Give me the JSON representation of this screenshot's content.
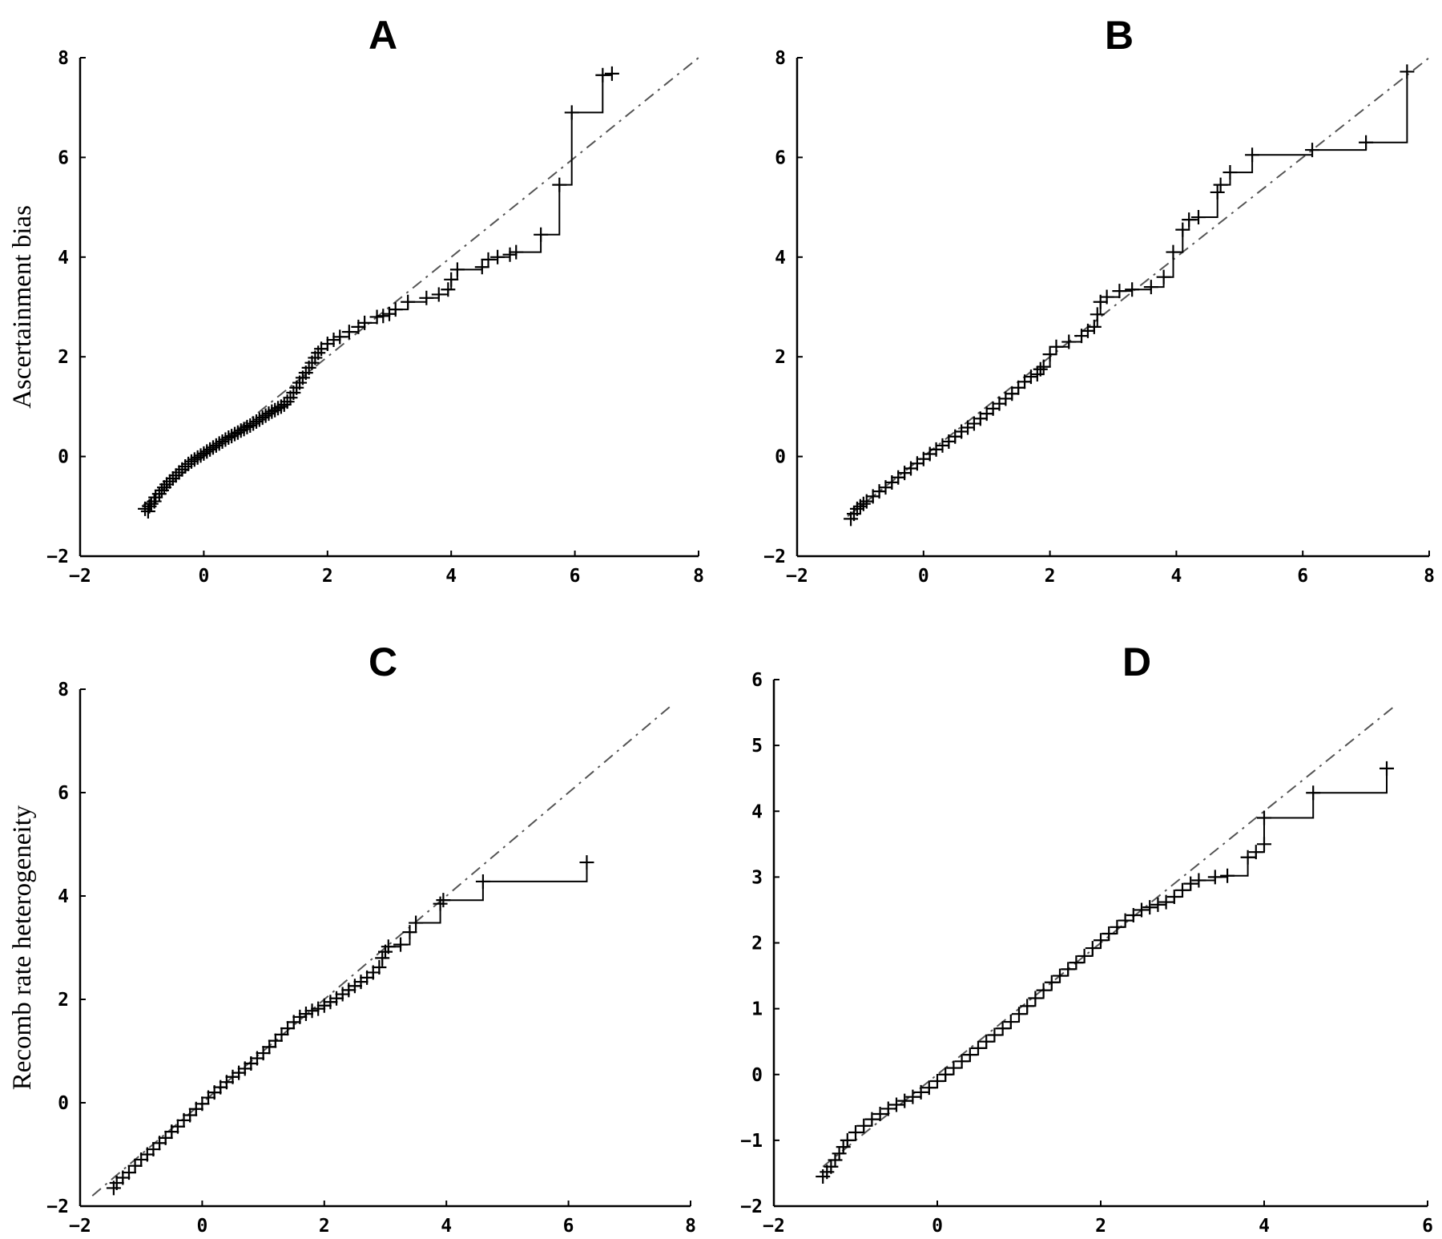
{
  "chart_data": [
    {
      "type": "scatter",
      "panel": "A",
      "ylabel": "Ascertainment bias",
      "xlim": [
        -2,
        8
      ],
      "ylim": [
        -2,
        8
      ],
      "xticks": [
        -2,
        0,
        2,
        4,
        6,
        8
      ],
      "yticks": [
        -2,
        0,
        2,
        4,
        6,
        8
      ],
      "grid": false,
      "reference_line": [
        [
          -1.0,
          -1.0
        ],
        [
          8.0,
          8.0
        ]
      ],
      "points": [
        [
          -0.95,
          -1.05
        ],
        [
          -0.9,
          -1.1
        ],
        [
          -0.88,
          -1.0
        ],
        [
          -0.85,
          -0.95
        ],
        [
          -0.8,
          -0.9
        ],
        [
          -0.78,
          -0.82
        ],
        [
          -0.72,
          -0.75
        ],
        [
          -0.68,
          -0.68
        ],
        [
          -0.64,
          -0.62
        ],
        [
          -0.6,
          -0.56
        ],
        [
          -0.55,
          -0.5
        ],
        [
          -0.5,
          -0.44
        ],
        [
          -0.45,
          -0.38
        ],
        [
          -0.4,
          -0.32
        ],
        [
          -0.35,
          -0.26
        ],
        [
          -0.3,
          -0.2
        ],
        [
          -0.25,
          -0.15
        ],
        [
          -0.2,
          -0.1
        ],
        [
          -0.15,
          -0.06
        ],
        [
          -0.1,
          -0.02
        ],
        [
          -0.05,
          0.02
        ],
        [
          0.0,
          0.06
        ],
        [
          0.05,
          0.1
        ],
        [
          0.1,
          0.14
        ],
        [
          0.15,
          0.18
        ],
        [
          0.2,
          0.22
        ],
        [
          0.25,
          0.26
        ],
        [
          0.3,
          0.3
        ],
        [
          0.35,
          0.34
        ],
        [
          0.4,
          0.38
        ],
        [
          0.45,
          0.41
        ],
        [
          0.5,
          0.45
        ],
        [
          0.55,
          0.48
        ],
        [
          0.6,
          0.52
        ],
        [
          0.65,
          0.55
        ],
        [
          0.7,
          0.59
        ],
        [
          0.75,
          0.62
        ],
        [
          0.8,
          0.66
        ],
        [
          0.85,
          0.7
        ],
        [
          0.9,
          0.74
        ],
        [
          0.95,
          0.78
        ],
        [
          1.0,
          0.82
        ],
        [
          1.05,
          0.86
        ],
        [
          1.1,
          0.9
        ],
        [
          1.15,
          0.93
        ],
        [
          1.2,
          0.97
        ],
        [
          1.25,
          1.0
        ],
        [
          1.3,
          1.04
        ],
        [
          1.35,
          1.1
        ],
        [
          1.4,
          1.18
        ],
        [
          1.45,
          1.28
        ],
        [
          1.5,
          1.38
        ],
        [
          1.55,
          1.48
        ],
        [
          1.6,
          1.58
        ],
        [
          1.65,
          1.68
        ],
        [
          1.7,
          1.78
        ],
        [
          1.75,
          1.88
        ],
        [
          1.8,
          1.98
        ],
        [
          1.85,
          2.08
        ],
        [
          1.9,
          2.16
        ],
        [
          2.0,
          2.26
        ],
        [
          2.1,
          2.34
        ],
        [
          2.2,
          2.4
        ],
        [
          2.35,
          2.5
        ],
        [
          2.5,
          2.6
        ],
        [
          2.6,
          2.68
        ],
        [
          2.8,
          2.8
        ],
        [
          2.9,
          2.82
        ],
        [
          3.0,
          2.86
        ],
        [
          3.1,
          2.95
        ],
        [
          3.3,
          3.1
        ],
        [
          3.6,
          3.18
        ],
        [
          3.8,
          3.25
        ],
        [
          3.95,
          3.35
        ],
        [
          4.0,
          3.55
        ],
        [
          4.1,
          3.75
        ],
        [
          4.5,
          3.8
        ],
        [
          4.6,
          3.95
        ],
        [
          4.75,
          4.0
        ],
        [
          4.95,
          4.05
        ],
        [
          5.05,
          4.1
        ],
        [
          5.45,
          4.45
        ],
        [
          5.75,
          5.45
        ],
        [
          5.95,
          6.9
        ],
        [
          6.45,
          7.65
        ],
        [
          6.6,
          7.68
        ]
      ]
    },
    {
      "type": "scatter",
      "panel": "B",
      "ylabel": "",
      "xlim": [
        -2,
        8
      ],
      "ylim": [
        -2,
        8
      ],
      "xticks": [
        -2,
        0,
        2,
        4,
        6,
        8
      ],
      "yticks": [
        -2,
        0,
        2,
        4,
        6,
        8
      ],
      "grid": false,
      "reference_line": [
        [
          -1.2,
          -1.2
        ],
        [
          8.0,
          8.0
        ]
      ],
      "points": [
        [
          -1.15,
          -1.25
        ],
        [
          -1.1,
          -1.15
        ],
        [
          -1.05,
          -1.05
        ],
        [
          -1.0,
          -1.0
        ],
        [
          -0.95,
          -0.95
        ],
        [
          -0.9,
          -0.9
        ],
        [
          -0.8,
          -0.8
        ],
        [
          -0.7,
          -0.7
        ],
        [
          -0.6,
          -0.62
        ],
        [
          -0.5,
          -0.52
        ],
        [
          -0.4,
          -0.42
        ],
        [
          -0.3,
          -0.33
        ],
        [
          -0.2,
          -0.24
        ],
        [
          -0.1,
          -0.14
        ],
        [
          0.0,
          -0.05
        ],
        [
          0.1,
          0.05
        ],
        [
          0.2,
          0.14
        ],
        [
          0.3,
          0.22
        ],
        [
          0.4,
          0.3
        ],
        [
          0.5,
          0.4
        ],
        [
          0.6,
          0.5
        ],
        [
          0.7,
          0.58
        ],
        [
          0.8,
          0.66
        ],
        [
          0.9,
          0.76
        ],
        [
          1.0,
          0.86
        ],
        [
          1.1,
          0.96
        ],
        [
          1.2,
          1.06
        ],
        [
          1.3,
          1.16
        ],
        [
          1.4,
          1.26
        ],
        [
          1.5,
          1.38
        ],
        [
          1.6,
          1.5
        ],
        [
          1.7,
          1.6
        ],
        [
          1.8,
          1.65
        ],
        [
          1.85,
          1.75
        ],
        [
          1.9,
          1.8
        ],
        [
          2.0,
          2.05
        ],
        [
          2.1,
          2.2
        ],
        [
          2.3,
          2.3
        ],
        [
          2.5,
          2.42
        ],
        [
          2.6,
          2.52
        ],
        [
          2.7,
          2.6
        ],
        [
          2.75,
          2.85
        ],
        [
          2.8,
          3.1
        ],
        [
          2.9,
          3.2
        ],
        [
          3.1,
          3.32
        ],
        [
          3.3,
          3.35
        ],
        [
          3.6,
          3.4
        ],
        [
          3.8,
          3.6
        ],
        [
          3.95,
          4.1
        ],
        [
          4.1,
          4.55
        ],
        [
          4.2,
          4.75
        ],
        [
          4.35,
          4.8
        ],
        [
          4.65,
          5.3
        ],
        [
          4.7,
          5.45
        ],
        [
          4.85,
          5.7
        ],
        [
          5.2,
          6.05
        ],
        [
          6.15,
          6.15
        ],
        [
          7.0,
          6.3
        ],
        [
          7.65,
          7.72
        ]
      ]
    },
    {
      "type": "scatter",
      "panel": "C",
      "ylabel": "Recomb rate heterogeneity",
      "xlim": [
        -2,
        8
      ],
      "ylim": [
        -2,
        8
      ],
      "xticks": [
        -2,
        0,
        2,
        4,
        6,
        8
      ],
      "yticks": [
        -2,
        0,
        2,
        4,
        6,
        8
      ],
      "grid": false,
      "reference_line": [
        [
          -1.8,
          -1.8
        ],
        [
          7.7,
          7.7
        ]
      ],
      "points": [
        [
          -1.45,
          -1.65
        ],
        [
          -1.4,
          -1.55
        ],
        [
          -1.3,
          -1.45
        ],
        [
          -1.2,
          -1.35
        ],
        [
          -1.1,
          -1.22
        ],
        [
          -1.0,
          -1.1
        ],
        [
          -0.9,
          -1.0
        ],
        [
          -0.8,
          -0.9
        ],
        [
          -0.7,
          -0.78
        ],
        [
          -0.6,
          -0.68
        ],
        [
          -0.5,
          -0.56
        ],
        [
          -0.4,
          -0.46
        ],
        [
          -0.3,
          -0.34
        ],
        [
          -0.2,
          -0.24
        ],
        [
          -0.1,
          -0.12
        ],
        [
          0.0,
          -0.02
        ],
        [
          0.1,
          0.1
        ],
        [
          0.2,
          0.2
        ],
        [
          0.3,
          0.3
        ],
        [
          0.4,
          0.4
        ],
        [
          0.5,
          0.5
        ],
        [
          0.6,
          0.58
        ],
        [
          0.7,
          0.66
        ],
        [
          0.8,
          0.76
        ],
        [
          0.9,
          0.86
        ],
        [
          1.0,
          0.96
        ],
        [
          1.1,
          1.08
        ],
        [
          1.2,
          1.2
        ],
        [
          1.3,
          1.32
        ],
        [
          1.4,
          1.44
        ],
        [
          1.5,
          1.56
        ],
        [
          1.6,
          1.66
        ],
        [
          1.7,
          1.72
        ],
        [
          1.8,
          1.78
        ],
        [
          1.9,
          1.82
        ],
        [
          2.0,
          1.88
        ],
        [
          2.1,
          1.95
        ],
        [
          2.2,
          2.02
        ],
        [
          2.3,
          2.1
        ],
        [
          2.4,
          2.18
        ],
        [
          2.5,
          2.26
        ],
        [
          2.6,
          2.34
        ],
        [
          2.7,
          2.42
        ],
        [
          2.8,
          2.52
        ],
        [
          2.9,
          2.62
        ],
        [
          2.95,
          2.8
        ],
        [
          3.0,
          2.92
        ],
        [
          3.05,
          3.02
        ],
        [
          3.25,
          3.06
        ],
        [
          3.4,
          3.3
        ],
        [
          3.5,
          3.48
        ],
        [
          3.9,
          3.85
        ],
        [
          3.95,
          3.92
        ],
        [
          4.6,
          4.28
        ],
        [
          6.3,
          4.65
        ]
      ]
    },
    {
      "type": "scatter",
      "panel": "D",
      "ylabel": "",
      "xlim": [
        -2,
        6
      ],
      "ylim": [
        -2,
        6
      ],
      "xticks": [
        -2,
        0,
        2,
        4,
        6
      ],
      "yticks": [
        -2,
        -1,
        0,
        1,
        2,
        3,
        4,
        5,
        6
      ],
      "grid": false,
      "reference_line": [
        [
          -1.4,
          -1.4
        ],
        [
          5.6,
          5.6
        ]
      ],
      "points": [
        [
          -1.4,
          -1.55
        ],
        [
          -1.35,
          -1.48
        ],
        [
          -1.3,
          -1.4
        ],
        [
          -1.25,
          -1.3
        ],
        [
          -1.2,
          -1.2
        ],
        [
          -1.15,
          -1.1
        ],
        [
          -1.1,
          -1.0
        ],
        [
          -1.0,
          -0.88
        ],
        [
          -0.9,
          -0.78
        ],
        [
          -0.8,
          -0.68
        ],
        [
          -0.7,
          -0.6
        ],
        [
          -0.6,
          -0.52
        ],
        [
          -0.5,
          -0.46
        ],
        [
          -0.4,
          -0.4
        ],
        [
          -0.3,
          -0.34
        ],
        [
          -0.2,
          -0.27
        ],
        [
          -0.1,
          -0.2
        ],
        [
          0.0,
          -0.1
        ],
        [
          0.1,
          0.0
        ],
        [
          0.2,
          0.1
        ],
        [
          0.3,
          0.2
        ],
        [
          0.4,
          0.3
        ],
        [
          0.5,
          0.4
        ],
        [
          0.6,
          0.5
        ],
        [
          0.7,
          0.6
        ],
        [
          0.8,
          0.7
        ],
        [
          0.9,
          0.8
        ],
        [
          1.0,
          0.92
        ],
        [
          1.1,
          1.04
        ],
        [
          1.2,
          1.16
        ],
        [
          1.3,
          1.28
        ],
        [
          1.4,
          1.4
        ],
        [
          1.5,
          1.5
        ],
        [
          1.6,
          1.6
        ],
        [
          1.7,
          1.7
        ],
        [
          1.8,
          1.8
        ],
        [
          1.9,
          1.92
        ],
        [
          2.0,
          2.04
        ],
        [
          2.1,
          2.14
        ],
        [
          2.2,
          2.24
        ],
        [
          2.3,
          2.34
        ],
        [
          2.4,
          2.42
        ],
        [
          2.5,
          2.5
        ],
        [
          2.6,
          2.54
        ],
        [
          2.7,
          2.58
        ],
        [
          2.8,
          2.62
        ],
        [
          2.9,
          2.7
        ],
        [
          3.0,
          2.8
        ],
        [
          3.1,
          2.9
        ],
        [
          3.2,
          2.95
        ],
        [
          3.4,
          3.0
        ],
        [
          3.55,
          3.02
        ],
        [
          3.8,
          3.3
        ],
        [
          3.9,
          3.38
        ],
        [
          4.0,
          3.5
        ],
        [
          4.0,
          3.9
        ],
        [
          4.6,
          4.28
        ],
        [
          5.5,
          4.65
        ]
      ]
    }
  ]
}
